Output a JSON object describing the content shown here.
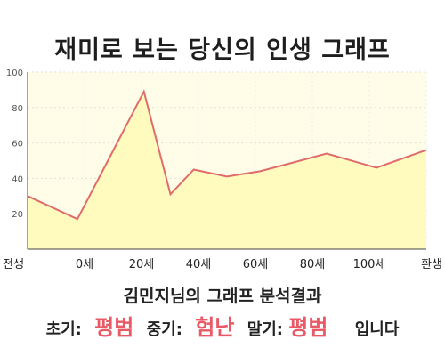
{
  "title": "재미로 보는 당신의 인생 그래프",
  "subtitle": "김민지님의 그래프 분석결과",
  "verdict": {
    "early_label": "초기:",
    "early_value": "평범",
    "mid_label": "중기:",
    "mid_value": "험난",
    "late_label": "말기:",
    "late_value": "평범",
    "ending": "입니다"
  },
  "colors": {
    "line": "#e06b6b",
    "fill": "#fffbbe",
    "plot_bg": "#fffde8",
    "accent": "#e85a66"
  },
  "chart_data": {
    "type": "area",
    "title": "",
    "xlabel": "",
    "ylabel": "",
    "ylim": [
      0,
      100
    ],
    "yticks": [
      20,
      40,
      60,
      80,
      100
    ],
    "x_tick_labels": [
      "전생",
      "0세",
      "20세",
      "40세",
      "60세",
      "80세",
      "100세",
      "환생"
    ],
    "grid": true,
    "series": [
      {
        "x": [
          -15,
          0,
          20,
          28,
          35,
          45,
          55,
          65,
          75,
          90,
          105
        ],
        "y": [
          30,
          17,
          89,
          31,
          45,
          41,
          44,
          49,
          54,
          46,
          56
        ]
      }
    ]
  }
}
